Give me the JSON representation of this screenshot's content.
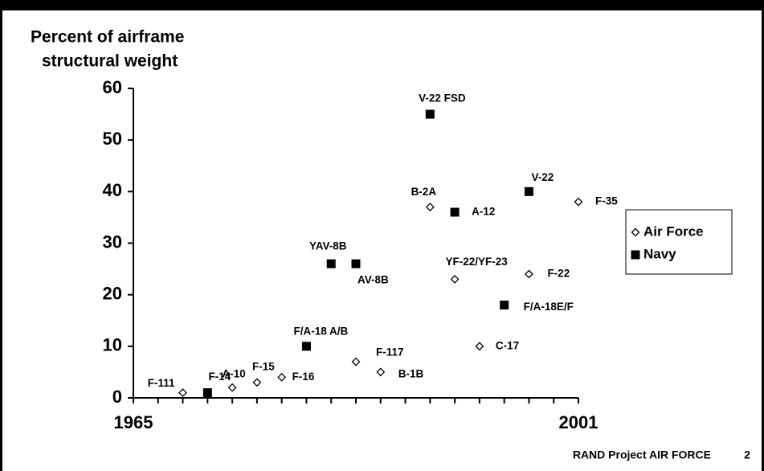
{
  "chart_data": {
    "type": "scatter",
    "y_label": [
      "Percent of airframe",
      "structural weight"
    ],
    "xlim": [
      1965,
      2001
    ],
    "xticks": [
      1965,
      2001
    ],
    "xminorticks": [
      1967,
      1969,
      1971,
      1973,
      1975,
      1977,
      1979,
      1981,
      1983,
      1985,
      1987,
      1989,
      1991,
      1993,
      1995,
      1997,
      1999
    ],
    "ylim": [
      0,
      60
    ],
    "yticks": [
      0,
      10,
      20,
      30,
      40,
      50,
      60
    ],
    "legend": "right",
    "series": [
      {
        "name": "Air Force",
        "marker": "open-diamond",
        "color": "#000000",
        "x": [
          1969,
          1973,
          1975,
          1977,
          1983,
          1985,
          1989,
          1991,
          1993,
          1997,
          2001
        ],
        "values": [
          1,
          2,
          3,
          4,
          7,
          5,
          37,
          23,
          10,
          24,
          38
        ],
        "labels": [
          "F-111",
          "A-10",
          "F-15",
          "F-16",
          "F-117",
          "B-1B",
          "B-2A",
          "YF-22/YF-23",
          "C-17",
          "F-22",
          "F-35"
        ]
      },
      {
        "name": "Navy",
        "marker": "filled-square",
        "color": "#000000",
        "x": [
          1971,
          1979,
          1981,
          1983,
          1989,
          1991,
          1995,
          1997
        ],
        "values": [
          1,
          10,
          26,
          26,
          55,
          36,
          18,
          40
        ],
        "labels": [
          "F-14",
          "F/A-18 A/B",
          "YAV-8B",
          "AV-8B",
          "V-22 FSD",
          "A-12",
          "F/A-18E/F",
          "V-22"
        ]
      }
    ]
  },
  "footer": {
    "organization": "RAND Project AIR FORCE",
    "page": "2"
  }
}
